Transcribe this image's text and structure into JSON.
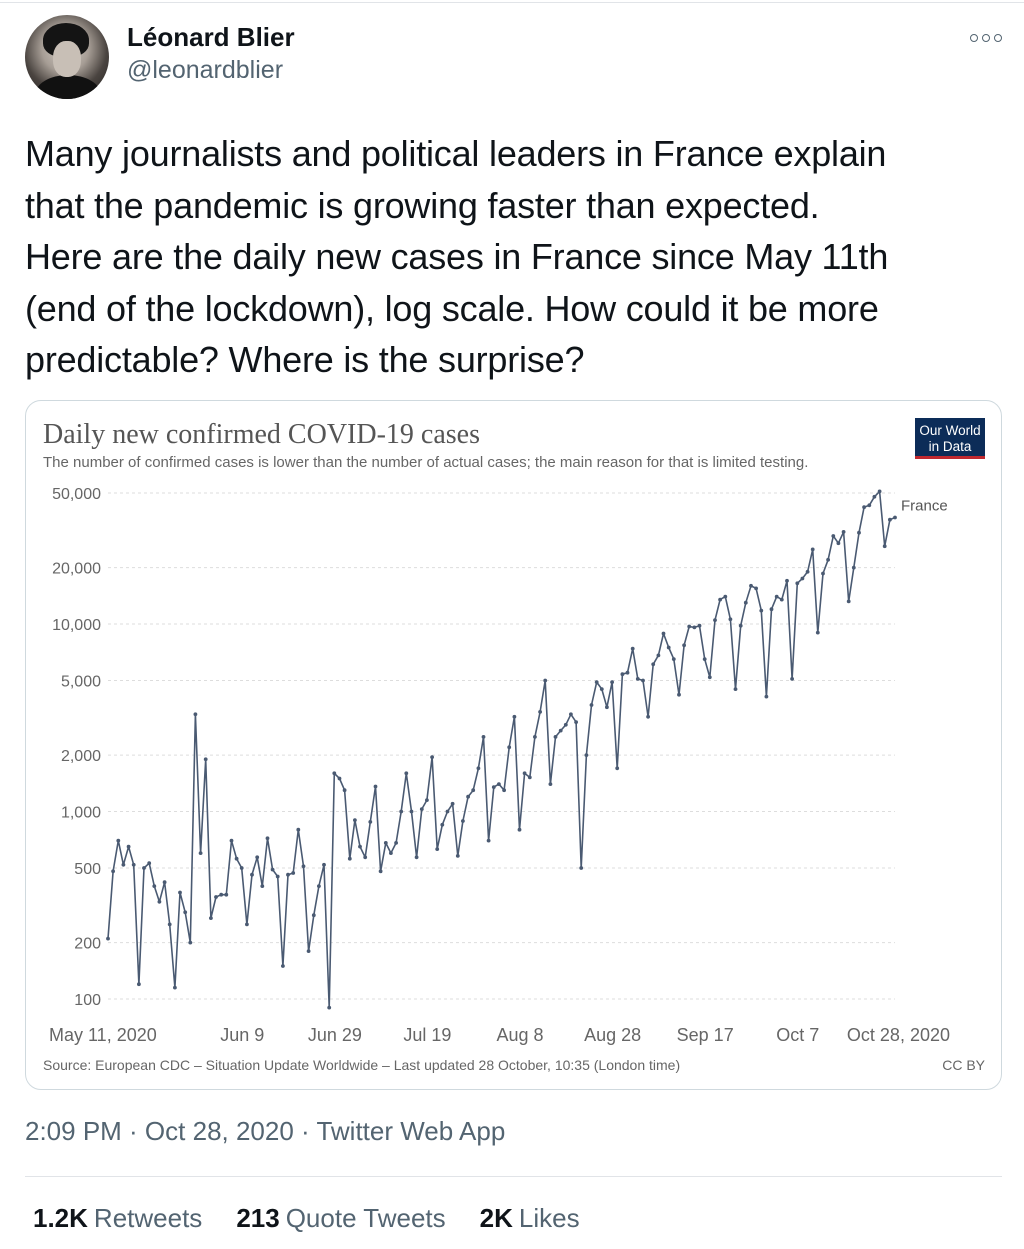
{
  "tweet": {
    "author_name": "Léonard Blier",
    "author_handle": "@leonardblier",
    "text": "Many journalists and political leaders in France explain\nthat the pandemic is growing faster than expected.\nHere are the daily new cases in France since May 11th\n(end of the lockdown), log scale. How could it be more\npredictable? Where is the surprise?",
    "timestamp": "2:09 PM · Oct 28, 2020 · Twitter Web App",
    "stats": {
      "retweets_count": "1.2K",
      "retweets_label": "Retweets",
      "quotes_count": "213",
      "quotes_label": "Quote Tweets",
      "likes_count": "2K",
      "likes_label": "Likes"
    },
    "icons": {
      "more": "more-icon"
    }
  },
  "chart_data": {
    "type": "line",
    "title": "Daily new confirmed COVID-19 cases",
    "subtitle": "The number of confirmed cases is lower than the number of actual cases; the main reason for that is limited testing.",
    "logo_line1": "Our World",
    "logo_line2": "in Data",
    "source": "Source: European CDC – Situation Update Worldwide – Last updated 28 October, 10:35 (London time)",
    "license": "CC BY",
    "y_scale": "log",
    "ylim": [
      100,
      50000
    ],
    "y_ticks": [
      100,
      200,
      500,
      1000,
      2000,
      5000,
      10000,
      20000,
      50000
    ],
    "y_tick_labels": [
      "100",
      "200",
      "500",
      "1,000",
      "2,000",
      "5,000",
      "10,000",
      "20,000",
      "50,000"
    ],
    "x_ticks": [
      "May 11, 2020",
      "Jun 9",
      "Jun 29",
      "Jul 19",
      "Aug 8",
      "Aug 28",
      "Sep 17",
      "Oct 7",
      "Oct 28, 2020"
    ],
    "x_start": "2020-05-11",
    "x_end": "2020-10-28",
    "grid": true,
    "series": [
      {
        "name": "France",
        "color": "#4a5a72",
        "values": [
          210,
          480,
          700,
          520,
          650,
          520,
          120,
          500,
          530,
          400,
          330,
          420,
          250,
          115,
          370,
          290,
          200,
          3300,
          600,
          1900,
          270,
          350,
          360,
          360,
          700,
          560,
          500,
          250,
          460,
          570,
          400,
          720,
          490,
          450,
          150,
          460,
          470,
          800,
          510,
          180,
          280,
          400,
          520,
          90,
          1600,
          1500,
          1300,
          560,
          900,
          650,
          570,
          880,
          1360,
          480,
          680,
          600,
          680,
          1000,
          1600,
          1000,
          570,
          1030,
          1150,
          1950,
          630,
          850,
          1000,
          1100,
          580,
          890,
          1200,
          1300,
          1700,
          2500,
          700,
          1350,
          1400,
          1300,
          2200,
          3200,
          800,
          1600,
          1520,
          2500,
          3400,
          5000,
          1400,
          2500,
          2700,
          2900,
          3300,
          3000,
          500,
          2000,
          3700,
          4900,
          4500,
          3600,
          4900,
          1700,
          5400,
          5500,
          7400,
          5100,
          5000,
          3200,
          6100,
          6800,
          8900,
          7500,
          6500,
          4200,
          7700,
          9700,
          9600,
          9800,
          6500,
          5200,
          10500,
          13500,
          14000,
          10600,
          4500,
          9800,
          13000,
          16000,
          15500,
          11800,
          4100,
          12000,
          14000,
          13500,
          17000,
          5100,
          16500,
          17500,
          19000,
          25000,
          9000,
          18600,
          22000,
          29500,
          27000,
          31000,
          13200,
          20000,
          30700,
          42000,
          43000,
          47700,
          51000,
          26000,
          36000,
          37000
        ]
      }
    ]
  }
}
